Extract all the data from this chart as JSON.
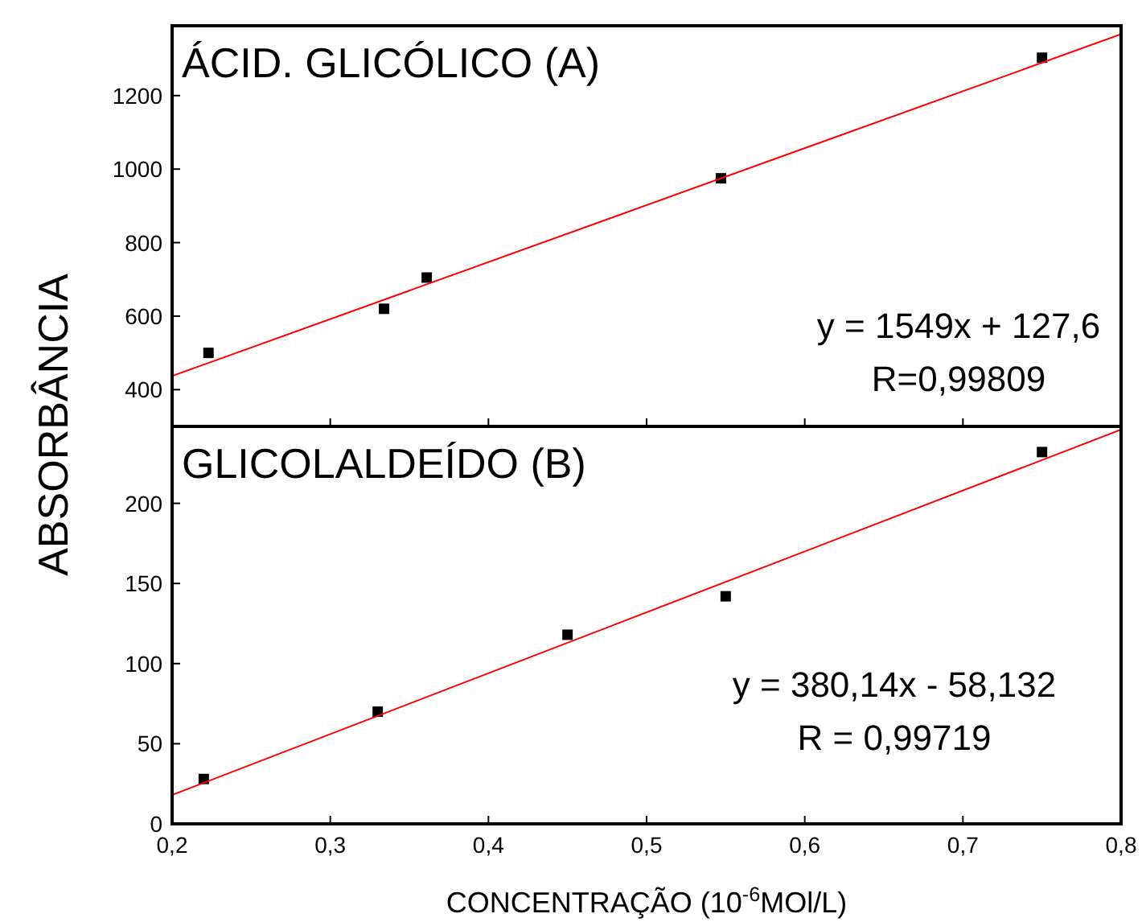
{
  "chart_data": [
    {
      "type": "scatter",
      "title": "ÁCID. GLICÓLICO (A)",
      "ylabel": "ABSORBÂNCIA",
      "xlim": [
        0.2,
        0.8
      ],
      "xticks": [
        0.2,
        0.3,
        0.4,
        0.5,
        0.6,
        0.7,
        0.8
      ],
      "ylim": [
        300,
        1390
      ],
      "yticks": [
        400,
        600,
        800,
        1000,
        1200
      ],
      "tick_labels": "y",
      "marker": "square",
      "annotations": [
        "y = 1549x + 127,6",
        "R=0,99809"
      ],
      "series": [
        {
          "color": "#000000",
          "x": [
            0.223,
            0.334,
            0.361,
            0.547,
            0.75
          ],
          "values": [
            500,
            620,
            705,
            975,
            1303
          ]
        },
        {
          "type": "line",
          "color": "#ff0000",
          "marker": "none",
          "x": [
            0.2,
            0.8
          ],
          "values": [
            437,
            1367
          ]
        }
      ]
    },
    {
      "type": "scatter",
      "title": "GLICOLALDEÍDO (B)",
      "xlabel": "CONCENTRAÇÃO (10$^{-6}$MOl/L)",
      "xlim": [
        0.2,
        0.8
      ],
      "xticks": [
        {
          "value": 0.2,
          "label": "0,2"
        },
        {
          "value": 0.3,
          "label": "0,3"
        },
        {
          "value": 0.4,
          "label": "0,4"
        },
        {
          "value": 0.5,
          "label": "0,5"
        },
        {
          "value": 0.6,
          "label": "0,6"
        },
        {
          "value": 0.7,
          "label": "0,7"
        },
        {
          "value": 0.8,
          "label": "0,8"
        }
      ],
      "ylim": [
        0,
        248
      ],
      "yticks": [
        0,
        50,
        100,
        150,
        200
      ],
      "marker": "square",
      "annotations": [
        "y = 380,14x - 58,132",
        "R = 0,99719"
      ],
      "series": [
        {
          "color": "#000000",
          "x": [
            0.22,
            0.33,
            0.45,
            0.55,
            0.75
          ],
          "values": [
            28,
            70,
            118,
            142,
            232
          ]
        },
        {
          "type": "line",
          "color": "#ff0000",
          "marker": "none",
          "x": [
            0.2,
            0.8
          ],
          "values": [
            18,
            246
          ]
        }
      ]
    }
  ]
}
